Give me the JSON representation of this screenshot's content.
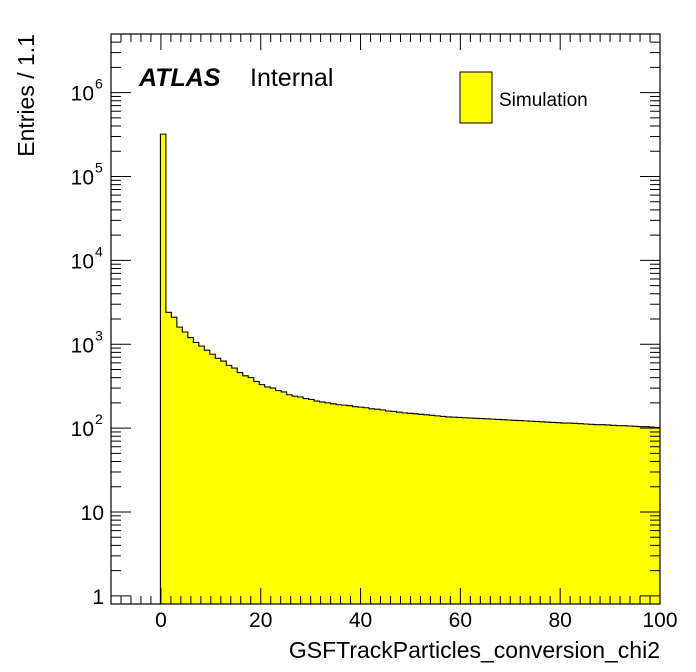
{
  "chart_data": {
    "type": "histogram",
    "xlabel": "GSFTrackParticles_conversion_chi2",
    "ylabel": "Entries / 1.1",
    "xlim": [
      -10,
      100
    ],
    "ylim": [
      0.8,
      5000000
    ],
    "yscale": "log",
    "bin_width": 1.1,
    "bin_start": -0.1,
    "grid": false,
    "legend_position": "top-right",
    "x_ticks": [
      "0",
      "20",
      "40",
      "60",
      "80",
      "100"
    ],
    "y_ticks": [
      {
        "base": "1",
        "exp": "",
        "value": 1
      },
      {
        "base": "10",
        "exp": "",
        "value": 10
      },
      {
        "base": "10",
        "exp": "2",
        "value": 100
      },
      {
        "base": "10",
        "exp": "3",
        "value": 1000
      },
      {
        "base": "10",
        "exp": "4",
        "value": 10000
      },
      {
        "base": "10",
        "exp": "5",
        "value": 100000
      },
      {
        "base": "10",
        "exp": "6",
        "value": 1000000
      }
    ],
    "label_main": "ATLAS",
    "label_sub": "Internal",
    "series": [
      {
        "name": "Simulation",
        "color": "#ffff00",
        "values": [
          320000,
          2400,
          2100,
          1600,
          1400,
          1200,
          1050,
          950,
          850,
          760,
          680,
          630,
          560,
          520,
          460,
          420,
          400,
          360,
          330,
          310,
          300,
          280,
          270,
          250,
          240,
          235,
          225,
          220,
          210,
          205,
          200,
          195,
          190,
          188,
          185,
          180,
          178,
          175,
          170,
          168,
          165,
          160,
          158,
          155,
          152,
          150,
          148,
          146,
          144,
          142,
          140,
          138,
          136,
          135,
          134,
          133,
          132,
          131,
          130,
          129,
          128,
          127,
          126,
          125,
          124,
          123,
          122,
          121,
          120,
          119,
          118,
          117,
          116,
          115,
          115,
          114,
          113,
          112,
          111,
          110,
          110,
          109,
          108,
          107,
          107,
          106,
          105,
          104,
          104,
          103,
          102,
          101,
          100
        ]
      }
    ]
  }
}
